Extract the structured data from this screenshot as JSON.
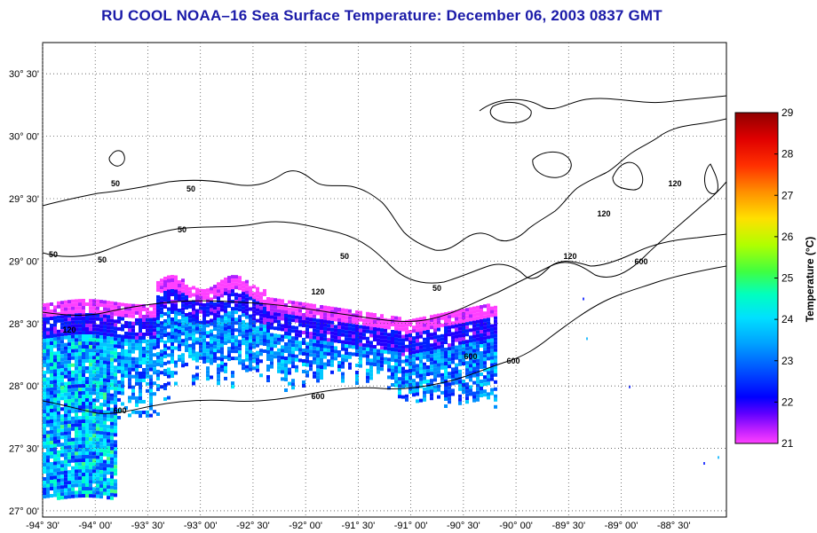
{
  "title": "RU COOL  NOAA–16  Sea Surface Temperature:  December 06, 2003 0837 GMT",
  "map": {
    "lon_range": [
      -94.5,
      -88.0
    ],
    "lat_range": [
      26.95,
      30.75
    ],
    "lon_ticks": [
      "-94° 30'",
      "-94° 00'",
      "-93° 30'",
      "-93° 00'",
      "-92° 30'",
      "-92° 00'",
      "-91° 30'",
      "-91° 00'",
      "-90° 30'",
      "-90° 00'",
      "-89° 30'",
      "-89° 00'",
      "-88° 30'"
    ],
    "lat_ticks": [
      "30° 30'",
      "30° 00'",
      "29° 30'",
      "29° 00'",
      "28° 30'",
      "28° 00'",
      "27° 30'",
      "27° 00'"
    ],
    "grid": "dotted",
    "contour_labels": [
      "50",
      "50",
      "50",
      "50",
      "50",
      "50",
      "50",
      "120",
      "120",
      "120",
      "120",
      "120",
      "600",
      "600",
      "600",
      "600",
      "600"
    ]
  },
  "colorbar": {
    "title": "Temperature (°C)",
    "ticks": [
      "29",
      "28",
      "27",
      "26",
      "25",
      "24",
      "23",
      "22",
      "21"
    ],
    "min": 21,
    "max": 29,
    "colors": [
      "#ff40ff",
      "#7a00ff",
      "#0000ff",
      "#0060ff",
      "#00c0ff",
      "#00ffd0",
      "#40ff40",
      "#d0ff00",
      "#ffd000",
      "#ff6000",
      "#ff0000",
      "#a00000"
    ]
  }
}
